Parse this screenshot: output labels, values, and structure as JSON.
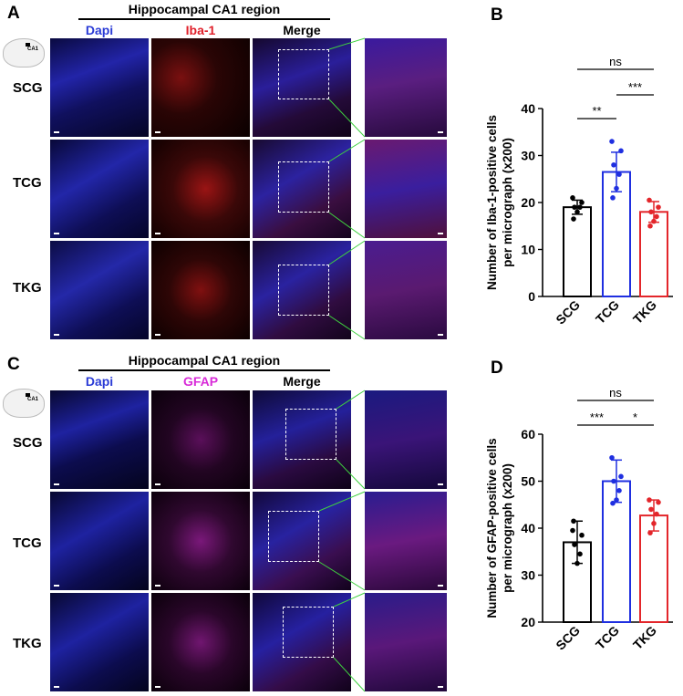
{
  "panel_letters": {
    "a": "A",
    "b": "B",
    "c": "C",
    "d": "D"
  },
  "top": {
    "header": "Hippocampal CA1 region",
    "col_dapi": "Dapi",
    "col_marker": "Iba-1",
    "col_merge": "Merge",
    "inset_label": "CA1",
    "rows": [
      "SCG",
      "TCG",
      "TKG"
    ]
  },
  "bottom": {
    "header": "Hippocampal CA1 region",
    "col_dapi": "Dapi",
    "col_marker": "GFAP",
    "col_merge": "Merge",
    "inset_label": "CA1",
    "rows": [
      "SCG",
      "TCG",
      "TKG"
    ]
  },
  "colors": {
    "dapi": "#2a3bd6",
    "iba1": "#e0202a",
    "gfap": "#d82bd8",
    "scg": "#000000",
    "tcg": "#1f2fe0",
    "tkg": "#e3262b"
  },
  "chart_data": [
    {
      "type": "bar",
      "categories": [
        "SCG",
        "TCG",
        "TKG"
      ],
      "values": [
        19,
        26.5,
        18
      ],
      "errors": [
        1.5,
        4.2,
        2.2
      ],
      "points": [
        [
          21,
          20,
          19,
          19,
          18,
          16.5
        ],
        [
          33,
          31,
          28,
          26,
          23,
          21
        ],
        [
          20.5,
          19,
          18,
          17,
          16,
          15
        ]
      ],
      "ylabel": "Number of Iba-1-positive cells per micrograph (x200)",
      "ylim": [
        0,
        40
      ],
      "yticks": [
        "0",
        "10",
        "20",
        "30",
        "40"
      ],
      "bar_colors": [
        "#000000",
        "#1f2fe0",
        "#e3262b"
      ],
      "significance": [
        {
          "pair": [
            "SCG",
            "TKG"
          ],
          "label": "ns"
        },
        {
          "pair": [
            "TCG",
            "TKG"
          ],
          "label": "***"
        },
        {
          "pair": [
            "SCG",
            "TCG"
          ],
          "label": "**"
        }
      ]
    },
    {
      "type": "bar",
      "categories": [
        "SCG",
        "TCG",
        "TKG"
      ],
      "values": [
        37,
        50,
        42.7
      ],
      "errors": [
        4.5,
        4.5,
        3.3
      ],
      "points": [
        [
          39.5,
          38.5,
          36.5,
          34.5,
          32.5,
          41.5
        ],
        [
          55,
          51,
          50,
          48,
          46,
          45.3
        ],
        [
          46,
          45.5,
          44,
          43,
          41,
          39
        ]
      ],
      "ylabel": "Number of GFAP-positive cells per micrograph (x200)",
      "ylim": [
        20,
        60
      ],
      "yticks": [
        "20",
        "30",
        "40",
        "50",
        "60"
      ],
      "bar_colors": [
        "#000000",
        "#1f2fe0",
        "#e3262b"
      ],
      "significance": [
        {
          "pair": [
            "SCG",
            "TKG"
          ],
          "label": "ns"
        },
        {
          "pair": [
            "SCG",
            "TCG"
          ],
          "label": "***"
        },
        {
          "pair": [
            "TCG",
            "TKG"
          ],
          "label": "*"
        }
      ]
    }
  ]
}
